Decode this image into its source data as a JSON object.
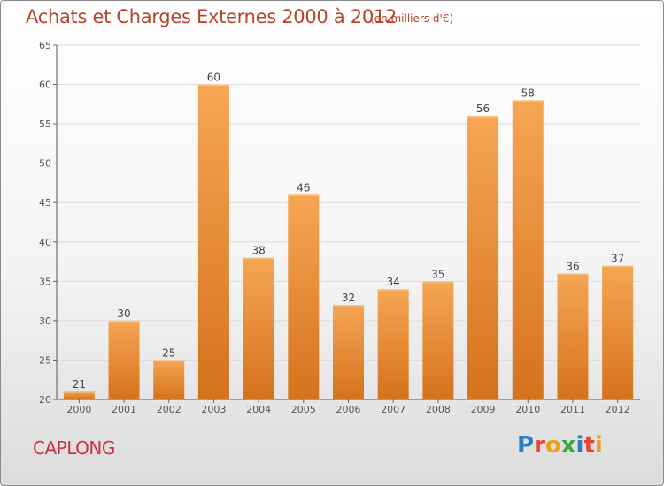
{
  "header": {
    "title": "Achats et Charges Externes 2000 à 2012",
    "unit": "(en milliers d'€)"
  },
  "footer": {
    "commune": "CAPLONG",
    "logo": "Proxiti"
  },
  "colors": {
    "bar_light": "#f6a654",
    "bar_dark": "#d5721d",
    "title": "#b8432a",
    "commune": "#cc3340",
    "grid": "#dddddd"
  },
  "logo_letter_colors": [
    "#2e7fc2",
    "#e8432e",
    "#f0a020",
    "#3aa83a",
    "#2e7fc2",
    "#e8432e",
    "#f0a020"
  ],
  "chart_data": {
    "type": "bar",
    "categories": [
      "2000",
      "2001",
      "2002",
      "2003",
      "2004",
      "2005",
      "2006",
      "2007",
      "2008",
      "2009",
      "2010",
      "2011",
      "2012"
    ],
    "values": [
      21,
      30,
      25,
      60,
      38,
      46,
      32,
      34,
      35,
      56,
      58,
      36,
      37
    ],
    "ylim": [
      20,
      65
    ],
    "yticks": [
      20,
      25,
      30,
      35,
      40,
      45,
      50,
      55,
      60,
      65
    ],
    "grid": true,
    "show_value_labels": true
  }
}
